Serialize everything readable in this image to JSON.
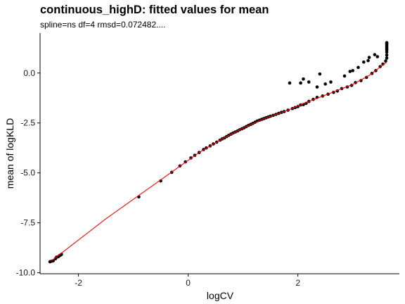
{
  "chart_data": {
    "type": "scatter",
    "title": "continuous_highD: fitted values for mean",
    "subtitle": "spline=ns df=4 rmsd=0.072482....",
    "xlabel": "logCV",
    "ylabel": "mean of logKLD",
    "xlim": [
      -2.7,
      3.85
    ],
    "ylim": [
      -10.05,
      2.0
    ],
    "x_ticks": [
      -2,
      0,
      2
    ],
    "y_ticks": [
      0.0,
      -2.5,
      -5.0,
      -7.5,
      -10.0
    ],
    "x_tick_labels": [
      "-2",
      "0",
      "2"
    ],
    "y_tick_labels": [
      "0.0",
      "-2.5",
      "-5.0",
      "-7.5",
      "-10.0"
    ],
    "grid": false,
    "colors": {
      "points": "#000000",
      "fit_line": "#ff0000"
    },
    "points": [
      [
        -2.52,
        -9.45
      ],
      [
        -2.49,
        -9.42
      ],
      [
        -2.46,
        -9.4
      ],
      [
        -2.42,
        -9.3
      ],
      [
        -2.4,
        -9.22
      ],
      [
        -2.37,
        -9.2
      ],
      [
        -2.35,
        -9.15
      ],
      [
        -2.33,
        -9.12
      ],
      [
        -2.31,
        -9.08
      ],
      [
        -0.9,
        -6.2
      ],
      [
        -0.5,
        -5.4
      ],
      [
        -0.3,
        -4.97
      ],
      [
        -0.15,
        -4.65
      ],
      [
        -0.05,
        -4.45
      ],
      [
        0.05,
        -4.25
      ],
      [
        0.12,
        -4.12
      ],
      [
        0.2,
        -3.98
      ],
      [
        0.28,
        -3.83
      ],
      [
        0.33,
        -3.75
      ],
      [
        0.4,
        -3.65
      ],
      [
        0.46,
        -3.55
      ],
      [
        0.52,
        -3.46
      ],
      [
        0.58,
        -3.36
      ],
      [
        0.62,
        -3.3
      ],
      [
        0.66,
        -3.25
      ],
      [
        0.7,
        -3.18
      ],
      [
        0.74,
        -3.12
      ],
      [
        0.78,
        -3.06
      ],
      [
        0.82,
        -3.0
      ],
      [
        0.86,
        -2.95
      ],
      [
        0.9,
        -2.9
      ],
      [
        0.94,
        -2.84
      ],
      [
        0.98,
        -2.79
      ],
      [
        1.02,
        -2.74
      ],
      [
        1.06,
        -2.68
      ],
      [
        1.1,
        -2.62
      ],
      [
        1.14,
        -2.57
      ],
      [
        1.18,
        -2.52
      ],
      [
        1.22,
        -2.46
      ],
      [
        1.26,
        -2.4
      ],
      [
        1.3,
        -2.36
      ],
      [
        1.34,
        -2.32
      ],
      [
        1.38,
        -2.28
      ],
      [
        1.42,
        -2.24
      ],
      [
        1.46,
        -2.2
      ],
      [
        1.5,
        -2.16
      ],
      [
        1.55,
        -2.12
      ],
      [
        1.6,
        -2.07
      ],
      [
        1.65,
        -2.02
      ],
      [
        1.7,
        -1.97
      ],
      [
        1.75,
        -1.93
      ],
      [
        1.82,
        -1.86
      ],
      [
        1.9,
        -1.78
      ],
      [
        1.95,
        -1.73
      ],
      [
        2.0,
        -1.68
      ],
      [
        2.05,
        -1.6
      ],
      [
        2.1,
        -1.58
      ],
      [
        2.15,
        -1.52
      ],
      [
        2.2,
        -1.42
      ],
      [
        2.28,
        -1.32
      ],
      [
        2.35,
        -1.22
      ],
      [
        2.45,
        -1.15
      ],
      [
        2.55,
        -1.06
      ],
      [
        2.65,
        -0.97
      ],
      [
        2.72,
        -0.9
      ],
      [
        2.8,
        -0.78
      ],
      [
        2.9,
        -0.7
      ],
      [
        2.98,
        -0.62
      ],
      [
        3.05,
        -0.48
      ],
      [
        3.15,
        -0.38
      ],
      [
        3.25,
        -0.22
      ],
      [
        3.35,
        -0.02
      ],
      [
        3.42,
        0.12
      ],
      [
        3.5,
        0.32
      ],
      [
        3.55,
        0.45
      ],
      [
        3.6,
        0.6
      ],
      [
        3.62,
        0.75
      ],
      [
        3.62,
        0.9
      ],
      [
        3.62,
        1.05
      ],
      [
        3.62,
        1.15
      ],
      [
        3.62,
        1.2
      ],
      [
        3.62,
        1.28
      ],
      [
        3.62,
        1.35
      ],
      [
        3.62,
        1.42
      ],
      [
        3.62,
        1.48
      ],
      [
        3.62,
        1.52
      ],
      [
        2.2,
        -0.45
      ],
      [
        2.1,
        -0.3
      ],
      [
        2.05,
        -0.5
      ],
      [
        1.85,
        -0.5
      ],
      [
        2.35,
        -0.7
      ],
      [
        2.5,
        -0.55
      ],
      [
        2.6,
        -0.45
      ],
      [
        2.85,
        -0.15
      ],
      [
        2.95,
        0.08
      ],
      [
        3.0,
        0.12
      ],
      [
        3.1,
        0.28
      ],
      [
        3.2,
        0.55
      ],
      [
        3.28,
        0.62
      ],
      [
        3.45,
        0.82
      ],
      [
        3.3,
        0.78
      ],
      [
        3.4,
        0.92
      ],
      [
        2.4,
        -0.05
      ]
    ],
    "fit_line": [
      [
        -2.5,
        -9.42
      ],
      [
        -1.5,
        -7.3
      ],
      [
        -0.5,
        -5.35
      ],
      [
        0.2,
        -3.98
      ],
      [
        0.6,
        -3.33
      ],
      [
        1.0,
        -2.76
      ],
      [
        1.4,
        -2.26
      ],
      [
        1.8,
        -1.88
      ],
      [
        2.2,
        -1.42
      ],
      [
        2.6,
        -1.0
      ],
      [
        3.0,
        -0.57
      ],
      [
        3.3,
        -0.12
      ],
      [
        3.62,
        0.55
      ]
    ]
  }
}
